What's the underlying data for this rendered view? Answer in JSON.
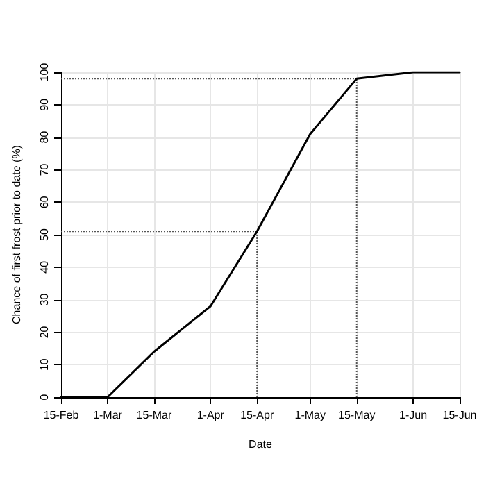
{
  "chart_data": {
    "type": "line",
    "xlabel": "Date",
    "ylabel": "Chance of first frost prior to date (%)",
    "x": [
      "--02-15",
      "--03-01",
      "--03-15",
      "--04-01",
      "--04-15",
      "--05-01",
      "--05-15",
      "--06-01",
      "--06-15"
    ],
    "series": [
      {
        "color": "#000000",
        "values": [
          0,
          0,
          14,
          28,
          51,
          81,
          98,
          100,
          100
        ]
      }
    ],
    "xlim": [
      "--02-15",
      "--06-15"
    ],
    "xticks": [
      {
        "value": "--02-15",
        "label": "15-Feb"
      },
      {
        "value": "--03-01",
        "label": "1-Mar"
      },
      {
        "value": "--03-15",
        "label": "15-Mar"
      },
      {
        "value": "--04-01",
        "label": "1-Apr"
      },
      {
        "value": "--04-15",
        "label": "15-Apr"
      },
      {
        "value": "--05-01",
        "label": "1-May"
      },
      {
        "value": "--05-15",
        "label": "15-May"
      },
      {
        "value": "--06-01",
        "label": "1-Jun"
      },
      {
        "value": "--06-15",
        "label": "15-Jun"
      }
    ],
    "ylim": [
      0,
      100
    ],
    "yticks": [
      0,
      10,
      20,
      30,
      40,
      50,
      60,
      70,
      80,
      90,
      100
    ],
    "ref_lines": [
      {
        "axis": "y",
        "value": 51,
        "line_style": "dotted"
      },
      {
        "axis": "x",
        "value": "--04-15",
        "line_style": "dotted"
      },
      {
        "axis": "y",
        "value": 98,
        "line_style": "dotted"
      },
      {
        "axis": "x",
        "value": "--05-15",
        "line_style": "dotted"
      }
    ],
    "grid": true,
    "marker": "none",
    "line_style": "solid"
  }
}
